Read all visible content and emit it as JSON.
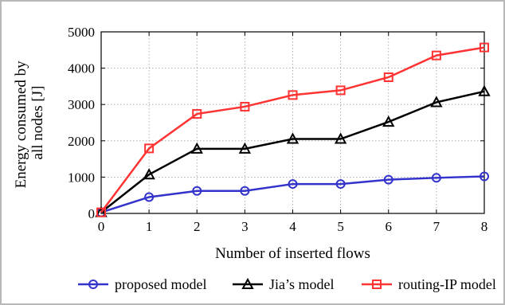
{
  "chart_data": {
    "type": "line",
    "title": "",
    "xlabel": "Number of inserted flows",
    "ylabel_lines": [
      "Energy consumed by",
      "all nodes [J]"
    ],
    "x": [
      0,
      1,
      2,
      3,
      4,
      5,
      6,
      7,
      8
    ],
    "xlim": [
      0,
      8
    ],
    "ylim": [
      0,
      5000
    ],
    "xticks": [
      "0",
      "1",
      "2",
      "3",
      "4",
      "5",
      "6",
      "7",
      "8"
    ],
    "yticks": [
      "0",
      "1000",
      "2000",
      "3000",
      "4000",
      "5000"
    ],
    "grid": true,
    "legend_position": "bottom",
    "series": [
      {
        "name": "proposed model",
        "color": "#3333cc",
        "marker": "circle",
        "values": [
          30,
          450,
          620,
          620,
          810,
          810,
          930,
          980,
          1020
        ]
      },
      {
        "name": "Jia’s model",
        "color": "#000000",
        "marker": "triangle",
        "values": [
          30,
          1070,
          1780,
          1780,
          2050,
          2050,
          2520,
          3060,
          3360
        ]
      },
      {
        "name": "routing-IP model",
        "color": "#ff3333",
        "marker": "square",
        "values": [
          30,
          1790,
          2740,
          2940,
          3260,
          3390,
          3750,
          4350,
          4570
        ]
      }
    ]
  }
}
